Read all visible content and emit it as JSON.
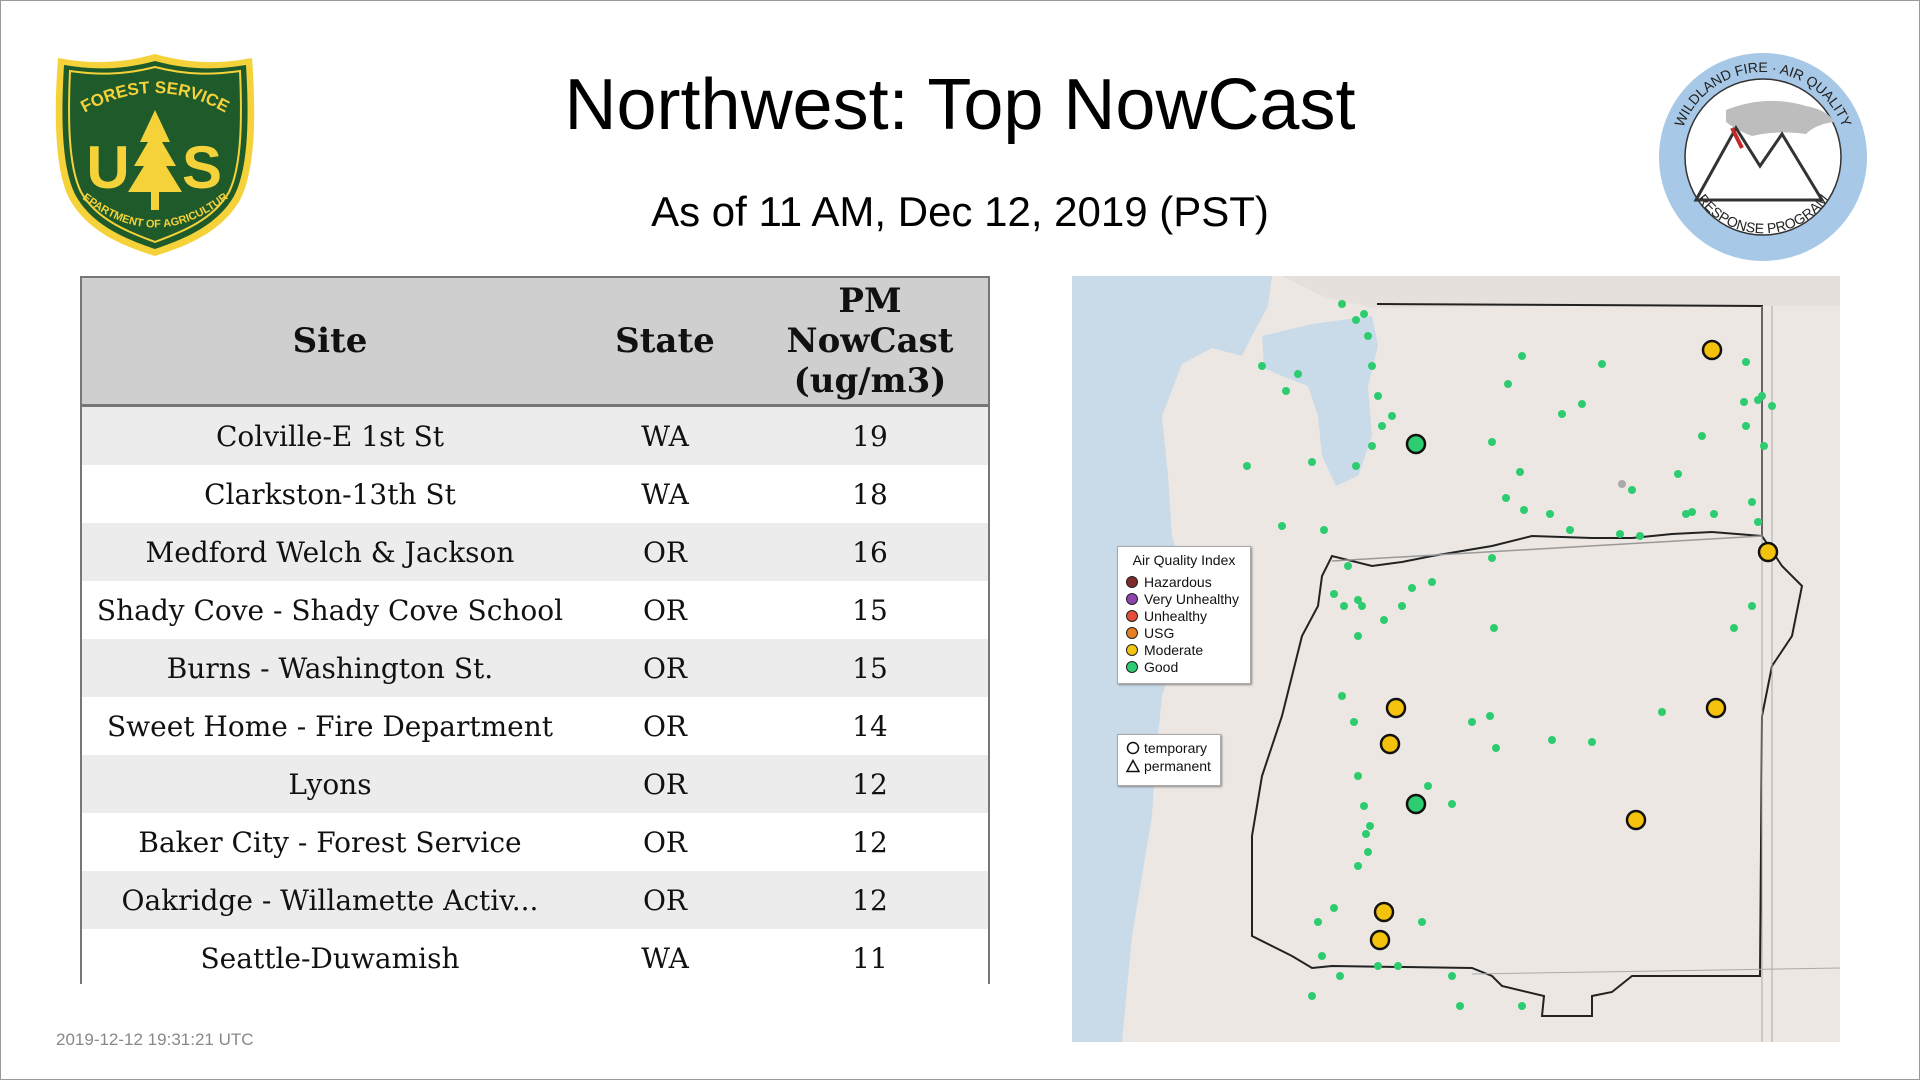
{
  "header": {
    "title": "Northwest: Top NowCast",
    "subtitle": "As of 11 AM, Dec 12, 2019 (PST)"
  },
  "logos": {
    "left": {
      "name": "forest-service-shield",
      "top_text": "FOREST SERVICE",
      "letters": "U S",
      "bottom_text": "DEPARTMENT OF AGRICULTURE"
    },
    "right": {
      "name": "wildland-fire-aq-response-program-seal",
      "top_text": "WILDLAND FIRE · AIR QUALITY",
      "bottom_text": "RESPONSE PROGRAM"
    }
  },
  "table": {
    "headers": {
      "site": "Site",
      "state": "State",
      "pm_line1": "PM",
      "pm_line2": "NowCast",
      "pm_line3": "(ug/m3)"
    },
    "rows": [
      {
        "site": "Colville-E 1st St",
        "state": "WA",
        "value": "19"
      },
      {
        "site": "Clarkston-13th St",
        "state": "WA",
        "value": "18"
      },
      {
        "site": "Medford Welch & Jackson",
        "state": "OR",
        "value": "16"
      },
      {
        "site": "Shady Cove - Shady Cove School",
        "state": "OR",
        "value": "15"
      },
      {
        "site": "Burns - Washington St.",
        "state": "OR",
        "value": "15"
      },
      {
        "site": "Sweet Home - Fire Department",
        "state": "OR",
        "value": "14"
      },
      {
        "site": "Lyons",
        "state": "OR",
        "value": "12"
      },
      {
        "site": "Baker City - Forest Service",
        "state": "OR",
        "value": "12"
      },
      {
        "site": "Oakridge - Willamette Activ...",
        "state": "OR",
        "value": "12"
      },
      {
        "site": "Seattle-Duwamish",
        "state": "WA",
        "value": "11"
      }
    ]
  },
  "timestamp": "2019-12-12 19:31:21 UTC",
  "map": {
    "legend": {
      "title": "Air Quality Index",
      "categories": [
        {
          "label": "Hazardous",
          "color": "#7e2b2b"
        },
        {
          "label": "Very Unhealthy",
          "color": "#8e44ad"
        },
        {
          "label": "Unhealthy",
          "color": "#e74c3c"
        },
        {
          "label": "USG",
          "color": "#e67e22"
        },
        {
          "label": "Moderate",
          "color": "#f1c40f"
        },
        {
          "label": "Good",
          "color": "#2ecc71"
        }
      ],
      "shapes": [
        {
          "label": "temporary",
          "shape": "circle"
        },
        {
          "label": "permanent",
          "shape": "triangle"
        }
      ]
    },
    "colors": {
      "water": "#c9dbe9",
      "land": "#ece7e3",
      "good": "#2ecc71",
      "moderate": "#f4c20d",
      "nodata": "#aaaaaa"
    }
  }
}
